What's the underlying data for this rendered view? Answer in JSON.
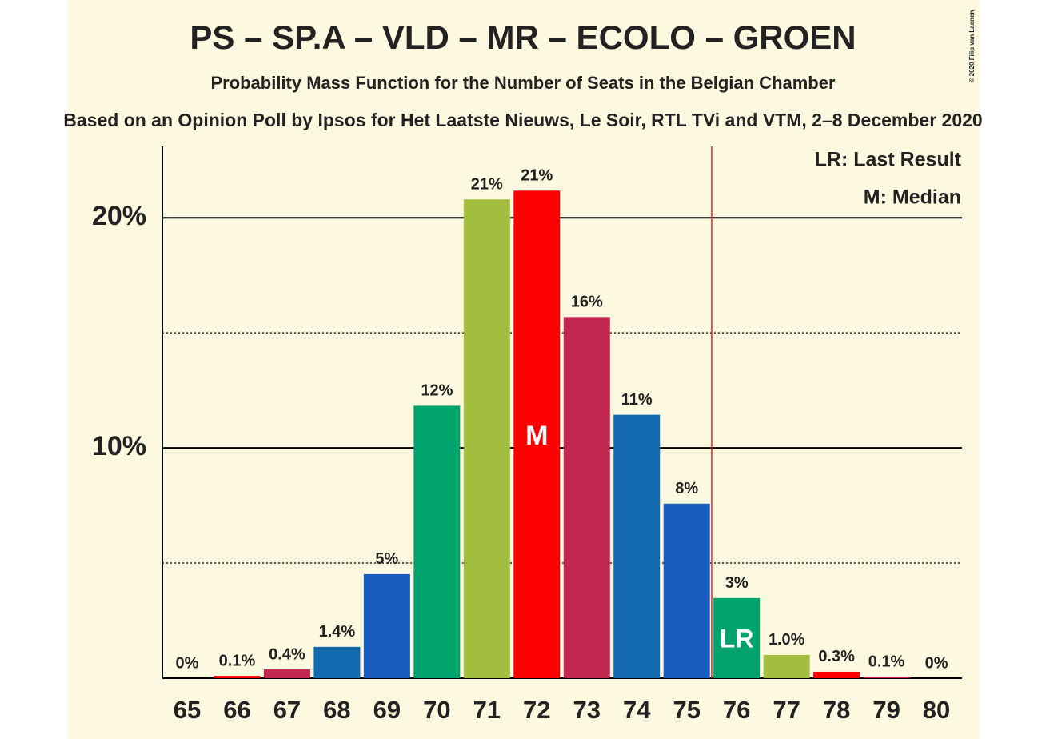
{
  "chart_data": {
    "type": "bar",
    "title": "PS – SP.A – VLD – MR – ECOLO – GROEN",
    "subtitle": "Probability Mass Function for the Number of Seats in the Belgian Chamber",
    "source": "Based on an Opinion Poll by Ipsos for Het Laatste Nieuws, Le Soir, RTL TVi and VTM, 2–8 December 2020",
    "copyright": "© 2020 Filip van Laenen",
    "categories": [
      "65",
      "66",
      "67",
      "68",
      "69",
      "70",
      "71",
      "72",
      "73",
      "74",
      "75",
      "76",
      "77",
      "78",
      "79",
      "80"
    ],
    "values": [
      0,
      0.1,
      0.38,
      1.36,
      4.52,
      11.83,
      20.8,
      21.18,
      15.69,
      11.44,
      7.58,
      3.48,
      1.01,
      0.28,
      0.07,
      0
    ],
    "value_labels": [
      "0%",
      "0.1%",
      "0.4%",
      "1.4%",
      "5%",
      "12%",
      "21%",
      "21%",
      "16%",
      "11%",
      "8%",
      "3%",
      "1.0%",
      "0.3%",
      "0.1%",
      "0%"
    ],
    "colors": [
      "#a3be3e",
      "#ff0000",
      "#c0264e",
      "#1269b0",
      "#1a5cbf",
      "#00a36c",
      "#a3be3e",
      "#ff0000",
      "#c0264e",
      "#1269b0",
      "#1a5cbf",
      "#00a36c",
      "#a3be3e",
      "#ff0000",
      "#c0264e",
      "#1269b0"
    ],
    "ylim": [
      0,
      23.1
    ],
    "yticks": [
      {
        "value": 10,
        "label": "10%"
      },
      {
        "value": 20,
        "label": "20%"
      }
    ],
    "minor_gridlines": [
      5,
      15
    ],
    "grid": true,
    "median": "72",
    "median_marker": "M",
    "median_legend": "M: Median",
    "last_result": "76",
    "last_result_marker": "LR",
    "last_result_legend": "LR: Last Result",
    "last_result_line_color": "#e8202a"
  }
}
